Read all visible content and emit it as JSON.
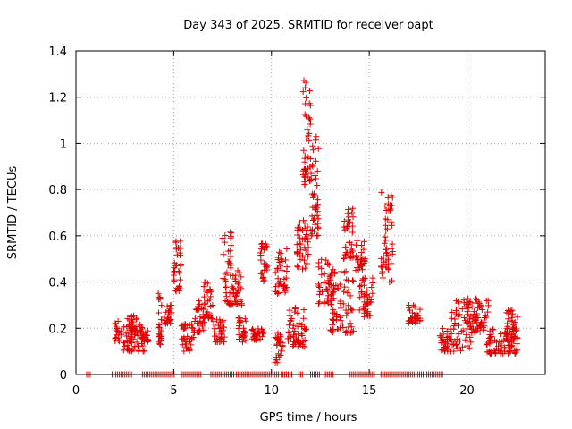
{
  "chart_data": {
    "type": "scatter",
    "title": "Day 343 of 2025, SRMTID for receiver oapt",
    "xlabel": "GPS time / hours",
    "ylabel": "SRMTID / TECUs",
    "xlim": [
      0,
      24
    ],
    "ylim": [
      0,
      1.4
    ],
    "xticks": [
      "0",
      "5",
      "10",
      "15",
      "20"
    ],
    "yticks": [
      "0",
      "0.2",
      "0.4",
      "0.6",
      "0.8",
      "1",
      "1.2",
      "1.4"
    ],
    "grid": true,
    "marker": "+",
    "color": "#e00000",
    "series": [
      {
        "name": "SRMTID",
        "clusters": [
          {
            "x": [
              2.0,
              2.3
            ],
            "y": [
              0.14,
              0.24
            ]
          },
          {
            "x": [
              2.4,
              3.5
            ],
            "y": [
              0.1,
              0.22
            ]
          },
          {
            "x": [
              2.6,
              3.1
            ],
            "y": [
              0.18,
              0.27
            ]
          },
          {
            "x": [
              3.3,
              3.7
            ],
            "y": [
              0.14,
              0.19
            ]
          },
          {
            "x": [
              4.2,
              4.4
            ],
            "y": [
              0.13,
              0.37
            ]
          },
          {
            "x": [
              4.5,
              4.9
            ],
            "y": [
              0.22,
              0.3
            ]
          },
          {
            "x": [
              5.0,
              5.4
            ],
            "y": [
              0.36,
              0.6
            ]
          },
          {
            "x": [
              5.4,
              6.0
            ],
            "y": [
              0.1,
              0.22
            ]
          },
          {
            "x": [
              6.0,
              6.6
            ],
            "y": [
              0.18,
              0.32
            ]
          },
          {
            "x": [
              6.5,
              7.0
            ],
            "y": [
              0.24,
              0.4
            ]
          },
          {
            "x": [
              7.0,
              7.6
            ],
            "y": [
              0.14,
              0.25
            ]
          },
          {
            "x": [
              7.5,
              8.0
            ],
            "y": [
              0.3,
              0.62
            ]
          },
          {
            "x": [
              8.0,
              8.5
            ],
            "y": [
              0.3,
              0.45
            ]
          },
          {
            "x": [
              8.3,
              8.7
            ],
            "y": [
              0.14,
              0.25
            ]
          },
          {
            "x": [
              9.0,
              9.6
            ],
            "y": [
              0.15,
              0.2
            ]
          },
          {
            "x": [
              9.4,
              9.8
            ],
            "y": [
              0.4,
              0.58
            ]
          },
          {
            "x": [
              10.2,
              10.6
            ],
            "y": [
              0.05,
              0.18
            ]
          },
          {
            "x": [
              10.2,
              10.8
            ],
            "y": [
              0.35,
              0.55
            ]
          },
          {
            "x": [
              10.8,
              11.8
            ],
            "y": [
              0.12,
              0.3
            ]
          },
          {
            "x": [
              11.6,
              12.0
            ],
            "y": [
              0.82,
              1.28
            ]
          },
          {
            "x": [
              11.3,
              11.9
            ],
            "y": [
              0.45,
              0.7
            ]
          },
          {
            "x": [
              12.0,
              12.4
            ],
            "y": [
              0.6,
              1.05
            ]
          },
          {
            "x": [
              12.4,
              13.2
            ],
            "y": [
              0.3,
              0.5
            ]
          },
          {
            "x": [
              13.0,
              14.2
            ],
            "y": [
              0.18,
              0.45
            ]
          },
          {
            "x": [
              13.7,
              14.2
            ],
            "y": [
              0.5,
              0.72
            ]
          },
          {
            "x": [
              14.3,
              14.8
            ],
            "y": [
              0.45,
              0.58
            ]
          },
          {
            "x": [
              14.5,
              15.2
            ],
            "y": [
              0.25,
              0.42
            ]
          },
          {
            "x": [
              15.6,
              16.2
            ],
            "y": [
              0.4,
              0.79
            ]
          },
          {
            "x": [
              17.0,
              17.6
            ],
            "y": [
              0.22,
              0.3
            ]
          },
          {
            "x": [
              18.6,
              19.2
            ],
            "y": [
              0.1,
              0.2
            ]
          },
          {
            "x": [
              19.2,
              20.2
            ],
            "y": [
              0.1,
              0.34
            ]
          },
          {
            "x": [
              20.0,
              21.2
            ],
            "y": [
              0.18,
              0.33
            ]
          },
          {
            "x": [
              21.0,
              22.6
            ],
            "y": [
              0.09,
              0.2
            ]
          },
          {
            "x": [
              22.0,
              22.6
            ],
            "y": [
              0.15,
              0.28
            ]
          }
        ],
        "zero_segments": [
          [
            0.55,
            0.8
          ],
          [
            1.85,
            2.9
          ],
          [
            3.4,
            5.1
          ],
          [
            5.4,
            6.4
          ],
          [
            6.9,
            8.1
          ],
          [
            8.2,
            10.4
          ],
          [
            10.5,
            11.1
          ],
          [
            11.4,
            11.6
          ],
          [
            12.0,
            12.5
          ],
          [
            12.7,
            13.2
          ],
          [
            14.0,
            15.3
          ],
          [
            15.6,
            18.8
          ]
        ]
      }
    ]
  }
}
